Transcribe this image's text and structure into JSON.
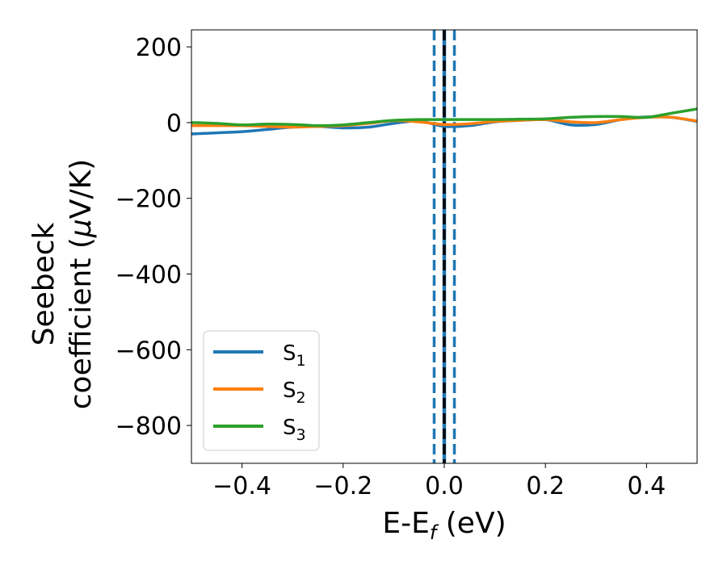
{
  "chart_data": {
    "type": "line",
    "xlabel": {
      "main": "E-E",
      "sub": "f",
      "suffix": " (eV)"
    },
    "ylabel": {
      "line1": "Seebeck",
      "line2_prefix": "coefficient  (",
      "line2_mu": "μ",
      "line2_suffix": "V/K)"
    },
    "xlim": [
      -0.5,
      0.5
    ],
    "ylim": [
      -900,
      245
    ],
    "x_ticks": [
      -0.4,
      -0.2,
      0.0,
      0.2,
      0.4
    ],
    "x_tick_labels": [
      "−0.4",
      "−0.2",
      "0.0",
      "0.2",
      "0.4"
    ],
    "y_ticks": [
      200,
      0,
      -200,
      -400,
      -600,
      -800
    ],
    "y_tick_labels": [
      "200",
      "0",
      "−200",
      "−400",
      "−600",
      "−800"
    ],
    "legend_position": "lower-left",
    "vlines": [
      {
        "x": 0.0,
        "color": "#1f77b4",
        "style": "solid"
      },
      {
        "x": 0.0,
        "color": "#000000",
        "style": "dashed"
      },
      {
        "x": -0.02,
        "color": "#1f77b4",
        "style": "dashed"
      },
      {
        "x": 0.02,
        "color": "#1f77b4",
        "style": "dashed"
      }
    ],
    "series": [
      {
        "name": "S",
        "sub": "1",
        "color": "#1f77b4",
        "x": [
          -0.5,
          -0.45,
          -0.4,
          -0.35,
          -0.3,
          -0.25,
          -0.2,
          -0.15,
          -0.1,
          -0.05,
          0.0,
          0.05,
          0.1,
          0.15,
          0.2,
          0.25,
          0.3,
          0.35,
          0.4,
          0.45,
          0.5
        ],
        "y": [
          -30,
          -27,
          -24,
          -18,
          -12,
          -10,
          -14,
          -12,
          -2,
          4,
          -10,
          -8,
          2,
          6,
          8,
          -6,
          -5,
          8,
          15,
          14,
          3
        ]
      },
      {
        "name": "S",
        "sub": "2",
        "color": "#ff7f0e",
        "x": [
          -0.5,
          -0.45,
          -0.4,
          -0.35,
          -0.3,
          -0.25,
          -0.2,
          -0.15,
          -0.1,
          -0.05,
          0.0,
          0.05,
          0.1,
          0.15,
          0.2,
          0.25,
          0.3,
          0.35,
          0.4,
          0.45,
          0.5
        ],
        "y": [
          -8,
          -8,
          -8,
          -10,
          -12,
          -10,
          -8,
          -2,
          5,
          2,
          -5,
          -3,
          3,
          6,
          8,
          2,
          0,
          8,
          14,
          14,
          4
        ]
      },
      {
        "name": "S",
        "sub": "3",
        "color": "#2ca02c",
        "x": [
          -0.5,
          -0.45,
          -0.4,
          -0.35,
          -0.3,
          -0.25,
          -0.2,
          -0.15,
          -0.1,
          -0.05,
          0.0,
          0.05,
          0.1,
          0.15,
          0.2,
          0.25,
          0.3,
          0.35,
          0.4,
          0.45,
          0.5
        ],
        "y": [
          0,
          -2,
          -6,
          -4,
          -5,
          -8,
          -6,
          0,
          6,
          8,
          8,
          8,
          8,
          9,
          10,
          14,
          16,
          16,
          14,
          25,
          36
        ]
      }
    ]
  }
}
